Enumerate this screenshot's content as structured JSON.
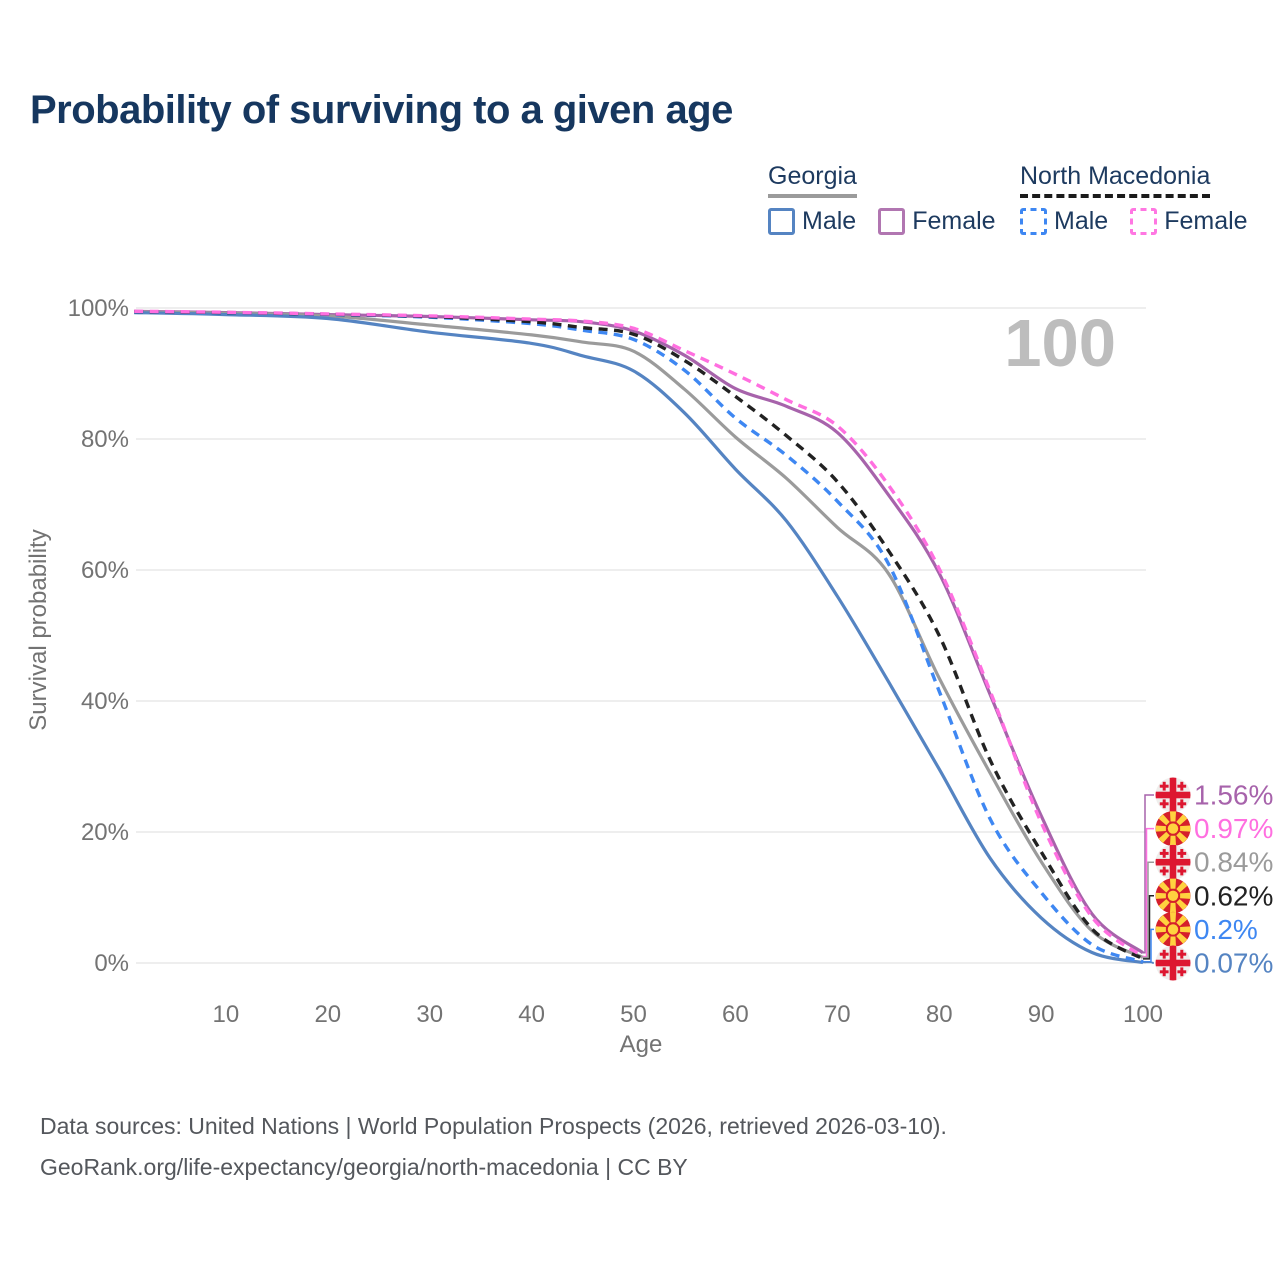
{
  "page": {
    "title": "Probability of surviving to a given age",
    "footer_line1": "Data sources: United Nations | World Population Prospects (2026, retrieved 2026-03-10).",
    "footer_line2": "GeoRank.org/life-expectancy/georgia/north-macedonia | CC BY"
  },
  "legend": {
    "georgia": {
      "label": "Georgia",
      "male_label": "Male",
      "female_label": "Female",
      "line_style": "solid",
      "line_color": "#9b9b9b",
      "male_color": "#5584c2",
      "female_color": "#b176b1"
    },
    "north_macedonia": {
      "label": "North Macedonia",
      "male_label": "Male",
      "female_label": "Female",
      "line_style": "dashed",
      "line_color": "#1b1b1b",
      "male_color": "#3e87f2",
      "female_color": "#ff77e2"
    }
  },
  "chart_data": {
    "type": "line",
    "title": "Probability of surviving to a given age",
    "xlabel": "Age",
    "ylabel": "Survival probability",
    "xlim": [
      0,
      100
    ],
    "ylim": [
      0,
      100
    ],
    "x_ticks": [
      10,
      20,
      30,
      40,
      50,
      60,
      70,
      80,
      90,
      100
    ],
    "y_ticks": [
      {
        "value": 0,
        "label": "0%"
      },
      {
        "value": 20,
        "label": "20%"
      },
      {
        "value": 40,
        "label": "40%"
      },
      {
        "value": 60,
        "label": "60%"
      },
      {
        "value": 80,
        "label": "80%"
      },
      {
        "value": 100,
        "label": "100%"
      }
    ],
    "grid": "horizontal",
    "legend_position": "top-right",
    "age_watermark": "100",
    "ages": [
      1,
      10,
      20,
      30,
      40,
      45,
      50,
      55,
      60,
      65,
      70,
      75,
      80,
      85,
      90,
      95,
      100
    ],
    "series": [
      {
        "name": "Georgia Female",
        "country": "Georgia",
        "sex": "Female",
        "style": "solid",
        "color": "#a763ab",
        "end_value": 1.56,
        "end_label": "1.56%",
        "values": [
          99.5,
          99.3,
          99.0,
          98.7,
          98.2,
          97.9,
          96.5,
          92.8,
          87.7,
          85.0,
          81.0,
          71.5,
          59.5,
          41.0,
          22.5,
          7.5,
          1.56
        ]
      },
      {
        "name": "Georgia",
        "country": "Georgia",
        "sex": "Both sexes",
        "style": "solid",
        "color": "#9b9b9b",
        "end_value": 0.84,
        "end_label": "0.84%",
        "values": [
          99.4,
          99.2,
          98.8,
          97.4,
          95.9,
          94.8,
          93.4,
          87.6,
          80.3,
          74.0,
          66.5,
          59.5,
          43.5,
          29.0,
          15.5,
          4.9,
          0.84
        ]
      },
      {
        "name": "Georgia Male",
        "country": "Georgia",
        "sex": "Male",
        "style": "solid",
        "color": "#5584c2",
        "end_value": 0.07,
        "end_label": "0.07%",
        "values": [
          99.3,
          99.0,
          98.4,
          96.3,
          94.6,
          92.7,
          90.4,
          84.0,
          75.4,
          67.5,
          56.0,
          43.0,
          29.6,
          16.0,
          6.9,
          1.6,
          0.07
        ]
      },
      {
        "name": "North Macedonia Male",
        "country": "North Macedonia",
        "sex": "Male",
        "style": "dashed",
        "color": "#3e87f2",
        "end_value": 0.2,
        "end_label": "0.2%",
        "values": [
          99.4,
          99.25,
          99.0,
          98.6,
          97.6,
          96.6,
          95.2,
          90.5,
          83.2,
          77.5,
          70.5,
          61.0,
          41.5,
          22.0,
          10.8,
          2.8,
          0.2
        ]
      },
      {
        "name": "North Macedonia",
        "country": "North Macedonia",
        "sex": "Both sexes",
        "style": "dashed",
        "color": "#222222",
        "end_value": 0.62,
        "end_label": "0.62%",
        "values": [
          99.45,
          99.3,
          99.05,
          98.7,
          97.9,
          97.0,
          96.0,
          92.0,
          86.5,
          80.5,
          73.5,
          63.0,
          50.0,
          31.0,
          17.0,
          5.2,
          0.62
        ]
      },
      {
        "name": "North Macedonia Female",
        "country": "North Macedonia",
        "sex": "Female",
        "style": "dashed",
        "color": "#ff6fe0",
        "end_value": 0.97,
        "end_label": "0.97%",
        "values": [
          99.5,
          99.35,
          99.1,
          98.8,
          98.3,
          98.0,
          96.9,
          93.5,
          89.9,
          86.0,
          82.0,
          73.0,
          60.2,
          41.5,
          21.5,
          7.0,
          0.97
        ]
      }
    ]
  }
}
